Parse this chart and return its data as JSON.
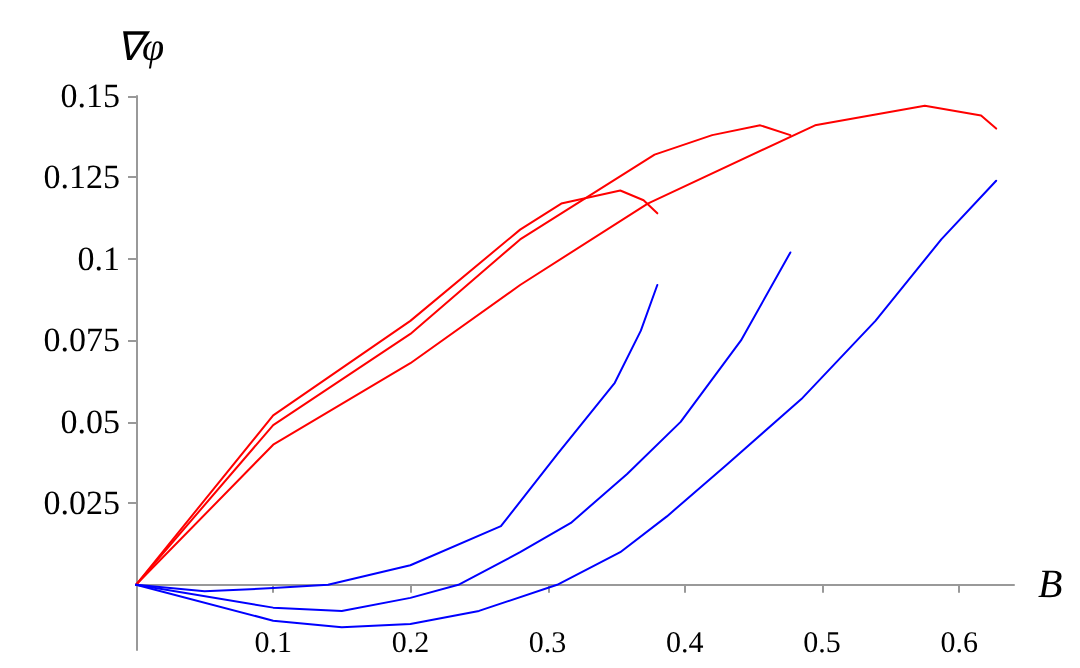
{
  "chart_data": {
    "type": "line",
    "xlabel": "B",
    "ylabel": "∇φ",
    "xlim": [
      0,
      0.64
    ],
    "ylim": [
      -0.02,
      0.15
    ],
    "xticks": [
      0.1,
      0.2,
      0.3,
      0.4,
      0.5,
      0.6
    ],
    "yticks": [
      0.025,
      0.05,
      0.075,
      0.1,
      0.125,
      0.15
    ],
    "grid": false,
    "marker": "none",
    "line_style": "solid",
    "series": [
      {
        "color": "#ff0000",
        "x": [
          0,
          0.1,
          0.2,
          0.28,
          0.31,
          0.353,
          0.37,
          0.38
        ],
        "values": [
          0,
          0.052,
          0.081,
          0.109,
          0.117,
          0.121,
          0.118,
          0.114
        ]
      },
      {
        "color": "#ff0000",
        "x": [
          0,
          0.1,
          0.2,
          0.28,
          0.378,
          0.42,
          0.455,
          0.477
        ],
        "values": [
          0,
          0.049,
          0.077,
          0.106,
          0.132,
          0.138,
          0.141,
          0.138
        ]
      },
      {
        "color": "#ff0000",
        "x": [
          0,
          0.1,
          0.2,
          0.28,
          0.373,
          0.495,
          0.575,
          0.616,
          0.627
        ],
        "values": [
          0,
          0.043,
          0.068,
          0.092,
          0.117,
          0.141,
          0.147,
          0.144,
          0.14
        ]
      },
      {
        "color": "#0000ff",
        "x": [
          0,
          0.05,
          0.1,
          0.14,
          0.2,
          0.266,
          0.307,
          0.349,
          0.368,
          0.38
        ],
        "values": [
          0,
          -0.002,
          -0.001,
          0,
          0.006,
          0.018,
          0.04,
          0.062,
          0.078,
          0.092
        ]
      },
      {
        "color": "#0000ff",
        "x": [
          0,
          0.1,
          0.15,
          0.2,
          0.235,
          0.28,
          0.317,
          0.358,
          0.397,
          0.441,
          0.477
        ],
        "values": [
          0,
          -0.007,
          -0.008,
          -0.004,
          0,
          0.01,
          0.019,
          0.034,
          0.05,
          0.075,
          0.102
        ]
      },
      {
        "color": "#0000ff",
        "x": [
          0,
          0.1,
          0.15,
          0.2,
          0.25,
          0.307,
          0.353,
          0.387,
          0.431,
          0.485,
          0.539,
          0.587,
          0.627
        ],
        "values": [
          0,
          -0.011,
          -0.013,
          -0.012,
          -0.008,
          0,
          0.01,
          0.021,
          0.037,
          0.057,
          0.081,
          0.106,
          0.124
        ]
      }
    ]
  }
}
